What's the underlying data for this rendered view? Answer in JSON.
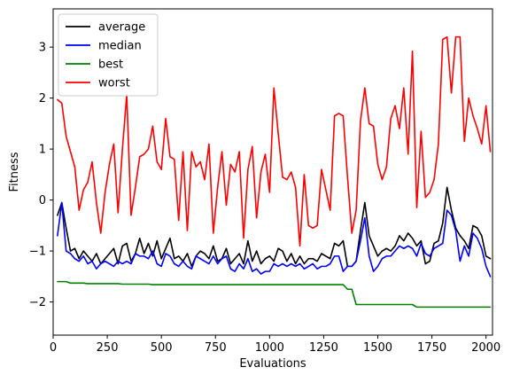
{
  "chart_data": {
    "type": "line",
    "xlabel": "Evaluations",
    "ylabel": "Fitness",
    "xlim": [
      0,
      2030
    ],
    "ylim": [
      -2.65,
      3.75
    ],
    "xticks": [
      0,
      250,
      500,
      750,
      1000,
      1250,
      1500,
      1750,
      2000
    ],
    "yticks": [
      -2,
      -1,
      0,
      1,
      2,
      3
    ],
    "grid": false,
    "legend_position": "top-left",
    "x": [
      20,
      40,
      60,
      80,
      100,
      120,
      140,
      160,
      180,
      200,
      220,
      240,
      260,
      280,
      300,
      320,
      340,
      360,
      380,
      400,
      420,
      440,
      460,
      480,
      500,
      520,
      540,
      560,
      580,
      600,
      620,
      640,
      660,
      680,
      700,
      720,
      740,
      760,
      780,
      800,
      820,
      840,
      860,
      880,
      900,
      920,
      940,
      960,
      980,
      1000,
      1020,
      1040,
      1060,
      1080,
      1100,
      1120,
      1140,
      1160,
      1180,
      1200,
      1220,
      1240,
      1260,
      1280,
      1300,
      1320,
      1340,
      1360,
      1380,
      1400,
      1420,
      1440,
      1460,
      1480,
      1500,
      1520,
      1540,
      1560,
      1580,
      1600,
      1620,
      1640,
      1660,
      1680,
      1700,
      1720,
      1740,
      1760,
      1780,
      1800,
      1820,
      1840,
      1860,
      1880,
      1900,
      1920,
      1940,
      1960,
      1980,
      2000,
      2020
    ],
    "series": [
      {
        "name": "average",
        "color": "#000000",
        "values": [
          -0.3,
          -0.05,
          -0.55,
          -1.0,
          -0.95,
          -1.15,
          -1.0,
          -1.1,
          -1.2,
          -1.05,
          -1.25,
          -1.15,
          -1.05,
          -0.95,
          -1.25,
          -0.9,
          -0.85,
          -1.2,
          -1.05,
          -0.75,
          -1.05,
          -0.85,
          -1.1,
          -0.8,
          -1.15,
          -0.95,
          -0.75,
          -1.15,
          -1.1,
          -1.2,
          -1.05,
          -1.3,
          -1.1,
          -1.0,
          -1.05,
          -1.15,
          -0.9,
          -1.2,
          -1.15,
          -0.95,
          -1.25,
          -1.15,
          -1.05,
          -1.25,
          -0.8,
          -1.2,
          -1.0,
          -1.25,
          -1.15,
          -1.1,
          -1.2,
          -0.95,
          -1.0,
          -1.2,
          -1.05,
          -1.25,
          -1.1,
          -1.25,
          -1.15,
          -1.15,
          -1.2,
          -1.05,
          -1.1,
          -1.15,
          -0.85,
          -0.9,
          -0.8,
          -1.3,
          -1.3,
          -1.2,
          -0.6,
          -0.05,
          -0.7,
          -0.9,
          -1.1,
          -1.0,
          -0.95,
          -1.0,
          -0.9,
          -0.7,
          -0.8,
          -0.65,
          -0.75,
          -0.9,
          -0.8,
          -1.25,
          -1.2,
          -0.85,
          -0.8,
          -0.45,
          0.25,
          -0.2,
          -0.55,
          -0.7,
          -0.8,
          -0.95,
          -0.5,
          -0.55,
          -0.7,
          -1.1,
          -1.15
        ]
      },
      {
        "name": "median",
        "color": "#0000ff",
        "values": [
          -0.7,
          -0.05,
          -1.0,
          -1.05,
          -1.15,
          -1.2,
          -1.1,
          -1.25,
          -1.2,
          -1.35,
          -1.25,
          -1.2,
          -1.25,
          -1.3,
          -1.2,
          -1.25,
          -1.2,
          -1.25,
          -1.05,
          -1.1,
          -1.1,
          -1.15,
          -1.0,
          -1.25,
          -1.3,
          -1.05,
          -1.1,
          -1.25,
          -1.3,
          -1.2,
          -1.3,
          -1.35,
          -1.1,
          -1.15,
          -1.2,
          -1.25,
          -1.1,
          -1.25,
          -1.15,
          -1.1,
          -1.35,
          -1.4,
          -1.25,
          -1.35,
          -1.15,
          -1.4,
          -1.35,
          -1.45,
          -1.4,
          -1.4,
          -1.25,
          -1.3,
          -1.25,
          -1.3,
          -1.25,
          -1.3,
          -1.25,
          -1.35,
          -1.3,
          -1.25,
          -1.35,
          -1.3,
          -1.3,
          -1.25,
          -1.1,
          -1.1,
          -1.4,
          -1.3,
          -1.3,
          -1.2,
          -0.8,
          -0.35,
          -1.1,
          -1.4,
          -1.3,
          -1.15,
          -1.1,
          -1.1,
          -1.0,
          -0.9,
          -0.95,
          -0.9,
          -0.95,
          -1.1,
          -0.85,
          -1.05,
          -1.1,
          -0.95,
          -0.9,
          -0.85,
          -0.2,
          -0.3,
          -0.6,
          -1.2,
          -0.9,
          -1.1,
          -0.65,
          -0.75,
          -0.95,
          -1.3,
          -1.5
        ]
      },
      {
        "name": "best",
        "color": "#008000",
        "values": [
          -1.6,
          -1.6,
          -1.6,
          -1.63,
          -1.63,
          -1.63,
          -1.63,
          -1.64,
          -1.64,
          -1.64,
          -1.64,
          -1.64,
          -1.64,
          -1.64,
          -1.64,
          -1.65,
          -1.65,
          -1.65,
          -1.65,
          -1.65,
          -1.65,
          -1.65,
          -1.66,
          -1.66,
          -1.66,
          -1.66,
          -1.66,
          -1.66,
          -1.66,
          -1.66,
          -1.66,
          -1.66,
          -1.66,
          -1.66,
          -1.66,
          -1.66,
          -1.66,
          -1.66,
          -1.66,
          -1.66,
          -1.66,
          -1.66,
          -1.66,
          -1.66,
          -1.66,
          -1.66,
          -1.66,
          -1.66,
          -1.66,
          -1.66,
          -1.66,
          -1.66,
          -1.66,
          -1.66,
          -1.66,
          -1.66,
          -1.66,
          -1.66,
          -1.66,
          -1.66,
          -1.66,
          -1.66,
          -1.66,
          -1.66,
          -1.66,
          -1.66,
          -1.66,
          -1.75,
          -1.75,
          -2.05,
          -2.05,
          -2.05,
          -2.05,
          -2.05,
          -2.05,
          -2.05,
          -2.05,
          -2.05,
          -2.05,
          -2.05,
          -2.05,
          -2.05,
          -2.05,
          -2.1,
          -2.1,
          -2.1,
          -2.1,
          -2.1,
          -2.1,
          -2.1,
          -2.1,
          -2.1,
          -2.1,
          -2.1,
          -2.1,
          -2.1,
          -2.1,
          -2.1,
          -2.1,
          -2.1,
          -2.1
        ]
      },
      {
        "name": "worst",
        "color": "#ff0000",
        "values": [
          1.97,
          1.9,
          1.25,
          0.95,
          0.65,
          -0.2,
          0.2,
          0.35,
          0.75,
          -0.05,
          -0.65,
          0.15,
          0.7,
          1.1,
          -0.25,
          1.0,
          2.07,
          -0.3,
          0.25,
          0.85,
          0.9,
          1.0,
          1.45,
          0.75,
          0.6,
          1.6,
          0.85,
          0.8,
          -0.4,
          0.95,
          -0.6,
          0.95,
          0.65,
          0.75,
          0.4,
          1.1,
          -0.65,
          0.25,
          0.95,
          -0.1,
          0.7,
          0.55,
          0.95,
          -0.75,
          0.6,
          1.05,
          -0.35,
          0.55,
          0.9,
          0.15,
          2.2,
          1.3,
          0.45,
          0.4,
          0.55,
          0.25,
          -0.9,
          0.5,
          -0.5,
          -0.55,
          -0.5,
          0.6,
          0.2,
          -0.2,
          1.65,
          1.7,
          1.65,
          0.45,
          -0.65,
          -0.2,
          1.55,
          2.2,
          1.5,
          1.45,
          0.7,
          0.4,
          0.65,
          1.6,
          1.85,
          1.4,
          2.2,
          0.9,
          2.92,
          -0.15,
          1.35,
          0.05,
          0.15,
          0.4,
          1.1,
          3.15,
          3.2,
          2.1,
          3.2,
          3.2,
          1.15,
          2.0,
          1.65,
          1.4,
          1.1,
          1.85,
          0.95
        ]
      }
    ]
  }
}
